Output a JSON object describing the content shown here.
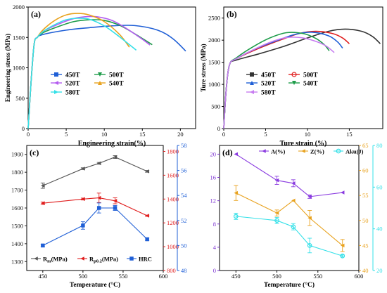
{
  "chart_data": [
    {
      "panel": "(a)",
      "type": "line",
      "xlabel": "Engineering strain(%)",
      "ylabel": "Engineering stress (MPa)",
      "xlim": [
        0,
        22
      ],
      "ylim": [
        0,
        2000
      ],
      "xticks": [
        0,
        5,
        10,
        15,
        20
      ],
      "yticks": [
        0,
        500,
        1000,
        1500,
        2000
      ],
      "grid": false,
      "legend_position": "bottom-left",
      "series": [
        {
          "name": "450T",
          "color": "#1f5fd6",
          "marker": "square",
          "points": [
            [
              0,
              0
            ],
            [
              0.4,
              800
            ],
            [
              0.8,
              1400
            ],
            [
              1.2,
              1500
            ],
            [
              2,
              1550
            ],
            [
              5,
              1620
            ],
            [
              8,
              1660
            ],
            [
              11,
              1690
            ],
            [
              14,
              1695
            ],
            [
              17,
              1620
            ],
            [
              19,
              1480
            ],
            [
              20.7,
              1275
            ]
          ]
        },
        {
          "name": "500T",
          "color": "#1e9c4a",
          "marker": "triangle-down",
          "points": [
            [
              0,
              0
            ],
            [
              0.4,
              800
            ],
            [
              0.8,
              1400
            ],
            [
              1.2,
              1500
            ],
            [
              2,
              1580
            ],
            [
              4,
              1680
            ],
            [
              6,
              1760
            ],
            [
              8,
              1790
            ],
            [
              10,
              1780
            ],
            [
              12,
              1700
            ],
            [
              14,
              1560
            ],
            [
              16.3,
              1380
            ]
          ]
        },
        {
          "name": "520T",
          "color": "#b45cf0",
          "marker": "triangle-left",
          "points": [
            [
              0,
              0
            ],
            [
              0.4,
              800
            ],
            [
              0.8,
              1400
            ],
            [
              1.2,
              1500
            ],
            [
              2,
              1600
            ],
            [
              4,
              1720
            ],
            [
              6,
              1810
            ],
            [
              7.5,
              1840
            ],
            [
              9,
              1840
            ],
            [
              11,
              1780
            ],
            [
              13,
              1640
            ],
            [
              15,
              1470
            ],
            [
              16,
              1375
            ]
          ]
        },
        {
          "name": "540T",
          "color": "#e8a21e",
          "marker": "triangle-up",
          "points": [
            [
              0,
              0
            ],
            [
              0.4,
              800
            ],
            [
              0.8,
              1400
            ],
            [
              1.2,
              1500
            ],
            [
              2,
              1630
            ],
            [
              3.5,
              1780
            ],
            [
              5,
              1870
            ],
            [
              6.5,
              1895
            ],
            [
              8,
              1870
            ],
            [
              10,
              1760
            ],
            [
              12,
              1550
            ],
            [
              13.3,
              1340
            ]
          ]
        },
        {
          "name": "580T",
          "color": "#34e0e8",
          "marker": "triangle-right",
          "points": [
            [
              0,
              0
            ],
            [
              0.4,
              800
            ],
            [
              0.8,
              1400
            ],
            [
              1.2,
              1500
            ],
            [
              2,
              1600
            ],
            [
              3.5,
              1710
            ],
            [
              5,
              1790
            ],
            [
              6.5,
              1815
            ],
            [
              8,
              1800
            ],
            [
              10,
              1690
            ],
            [
              12,
              1510
            ],
            [
              14.2,
              1290
            ]
          ]
        }
      ],
      "legend": [
        "450T",
        "500T",
        "520T",
        "540T",
        "580T"
      ]
    },
    {
      "panel": "(b)",
      "type": "line",
      "xlabel": "Ture strain (%)",
      "ylabel": "Ture stress (MPa)",
      "xlim": [
        0,
        19
      ],
      "ylim": [
        0,
        2750
      ],
      "xticks": [
        0,
        5,
        10,
        15
      ],
      "yticks": [
        0,
        500,
        1000,
        1500,
        2000,
        2500
      ],
      "grid": false,
      "legend_position": "bottom-left",
      "series": [
        {
          "name": "450T",
          "color": "#333333",
          "marker": "square",
          "points": [
            [
              0,
              0
            ],
            [
              0.3,
              900
            ],
            [
              0.7,
              1450
            ],
            [
              1.5,
              1550
            ],
            [
              4,
              1680
            ],
            [
              7,
              1850
            ],
            [
              10,
              2050
            ],
            [
              12.5,
              2200
            ],
            [
              14.5,
              2250
            ],
            [
              16.5,
              2200
            ],
            [
              17.8,
              2080
            ],
            [
              18.7,
              1920
            ]
          ]
        },
        {
          "name": "500T",
          "color": "#e01e1e",
          "marker": "circle",
          "points": [
            [
              0,
              0
            ],
            [
              0.3,
              900
            ],
            [
              0.7,
              1450
            ],
            [
              1.5,
              1580
            ],
            [
              4,
              1800
            ],
            [
              7,
              2020
            ],
            [
              9,
              2150
            ],
            [
              11,
              2200
            ],
            [
              13,
              2150
            ],
            [
              14.2,
              2050
            ],
            [
              15,
              1920
            ]
          ]
        },
        {
          "name": "520T",
          "color": "#1f5fd6",
          "marker": "triangle-up",
          "points": [
            [
              0,
              0
            ],
            [
              0.3,
              900
            ],
            [
              0.7,
              1450
            ],
            [
              1.5,
              1580
            ],
            [
              4,
              1820
            ],
            [
              6.5,
              2000
            ],
            [
              8.5,
              2130
            ],
            [
              10.5,
              2180
            ],
            [
              12.5,
              2100
            ],
            [
              13.6,
              1960
            ],
            [
              14.2,
              1820
            ]
          ]
        },
        {
          "name": "540T",
          "color": "#1e9c4a",
          "marker": "triangle-down",
          "points": [
            [
              0,
              0
            ],
            [
              0.3,
              900
            ],
            [
              0.7,
              1450
            ],
            [
              1.5,
              1600
            ],
            [
              3.5,
              1850
            ],
            [
              5.5,
              2050
            ],
            [
              7.5,
              2170
            ],
            [
              9.5,
              2150
            ],
            [
              11,
              2040
            ],
            [
              12,
              1900
            ],
            [
              12.6,
              1760
            ]
          ]
        },
        {
          "name": "580T",
          "color": "#c77df0",
          "marker": "triangle-left",
          "points": [
            [
              0,
              0
            ],
            [
              0.3,
              900
            ],
            [
              0.7,
              1450
            ],
            [
              1.5,
              1580
            ],
            [
              3.5,
              1780
            ],
            [
              5.5,
              1950
            ],
            [
              7.5,
              2060
            ],
            [
              9.5,
              2050
            ],
            [
              11.2,
              1960
            ],
            [
              12.3,
              1860
            ],
            [
              13.2,
              1720
            ]
          ]
        }
      ],
      "legend": [
        "450T",
        "500T",
        "520T",
        "540T",
        "580T"
      ]
    },
    {
      "panel": "(c)",
      "type": "line",
      "xlabel": "Temperature (°C)",
      "xlim": [
        430,
        600
      ],
      "xticks": [
        450,
        500,
        550,
        600
      ],
      "grid": false,
      "legend_position": "bottom-left",
      "axes": [
        {
          "id": "left",
          "color": "#222222",
          "ylim": [
            1250,
            1950
          ],
          "yticks": [
            1300,
            1400,
            1500,
            1600,
            1700,
            1800,
            1900
          ]
        },
        {
          "id": "right1",
          "color": "#e01e1e",
          "ylim": [
            800,
            1850
          ],
          "yticks": [
            800,
            1000,
            1200,
            1400,
            1600,
            1800
          ]
        },
        {
          "id": "right2",
          "color": "#1f5fd6",
          "ylim": [
            48,
            58
          ],
          "yticks": [
            48,
            50,
            52,
            54,
            56,
            58
          ]
        }
      ],
      "x": [
        450,
        500,
        520,
        540,
        580
      ],
      "series": [
        {
          "name": "R_m(MPa)",
          "axis": "left",
          "color": "#555555",
          "marker": "triangle-left",
          "values": [
            1725,
            1820,
            1850,
            1885,
            1805
          ],
          "errors": [
            15,
            5,
            5,
            8,
            5
          ]
        },
        {
          "name": "R_p0.2(MPa)",
          "axis": "right1",
          "color": "#e01e1e",
          "marker": "triangle-left",
          "values": [
            1365,
            1400,
            1410,
            1385,
            1260
          ],
          "errors": [
            10,
            8,
            40,
            25,
            5
          ]
        },
        {
          "name": "HRC",
          "axis": "right2",
          "color": "#1f5fd6",
          "marker": "square",
          "values": [
            50.0,
            51.6,
            53.0,
            53.0,
            50.5
          ],
          "errors": [
            0.1,
            0.3,
            0.4,
            0.2,
            0.1
          ]
        }
      ],
      "legend": [
        "R",
        "m",
        "(MPa)",
        "R",
        "p0.2",
        "(MPa)",
        "HRC"
      ]
    },
    {
      "panel": "(d)",
      "type": "line",
      "xlabel": "Temperature (°C)",
      "xlim": [
        430,
        600
      ],
      "xticks": [
        450,
        500,
        550,
        600
      ],
      "grid": false,
      "legend_position": "top-right",
      "axes": [
        {
          "id": "left",
          "color": "#7a2fd0",
          "ylim": [
            0,
            21.5
          ],
          "yticks": [
            0,
            4,
            8,
            12,
            16,
            20
          ]
        },
        {
          "id": "right1",
          "color": "#e8a21e",
          "ylim": [
            40,
            65
          ],
          "yticks": [
            40,
            45,
            50,
            55,
            60,
            65
          ]
        },
        {
          "id": "right2",
          "color": "#34e0e8",
          "ylim": [
            20,
            80
          ],
          "yticks": [
            20,
            40,
            60,
            80
          ]
        }
      ],
      "x": [
        450,
        500,
        520,
        540,
        580
      ],
      "series": [
        {
          "name": "A(%)",
          "axis": "left",
          "color": "#8a3be0",
          "marker": "triangle-left",
          "values": [
            20.0,
            15.5,
            15.0,
            12.7,
            13.4
          ],
          "errors": [
            0,
            0.7,
            0.6,
            0.3,
            0
          ]
        },
        {
          "name": "Z(%)",
          "axis": "right1",
          "color": "#e8a21e",
          "marker": "triangle-left",
          "values": [
            55.5,
            51.5,
            54.0,
            50.5,
            45.0
          ],
          "errors": [
            1.5,
            0.6,
            0,
            1.5,
            1.2
          ]
        },
        {
          "name": "Aku(J)",
          "axis": "right2",
          "color": "#34e0e8",
          "marker": "circle",
          "values": [
            46.0,
            44.0,
            41.0,
            32.0,
            27.0
          ],
          "errors": [
            1.5,
            1.5,
            1.5,
            3.5,
            0.5
          ]
        }
      ],
      "legend": [
        "A(%)",
        "Z(%)",
        "Aku(J)"
      ]
    }
  ]
}
